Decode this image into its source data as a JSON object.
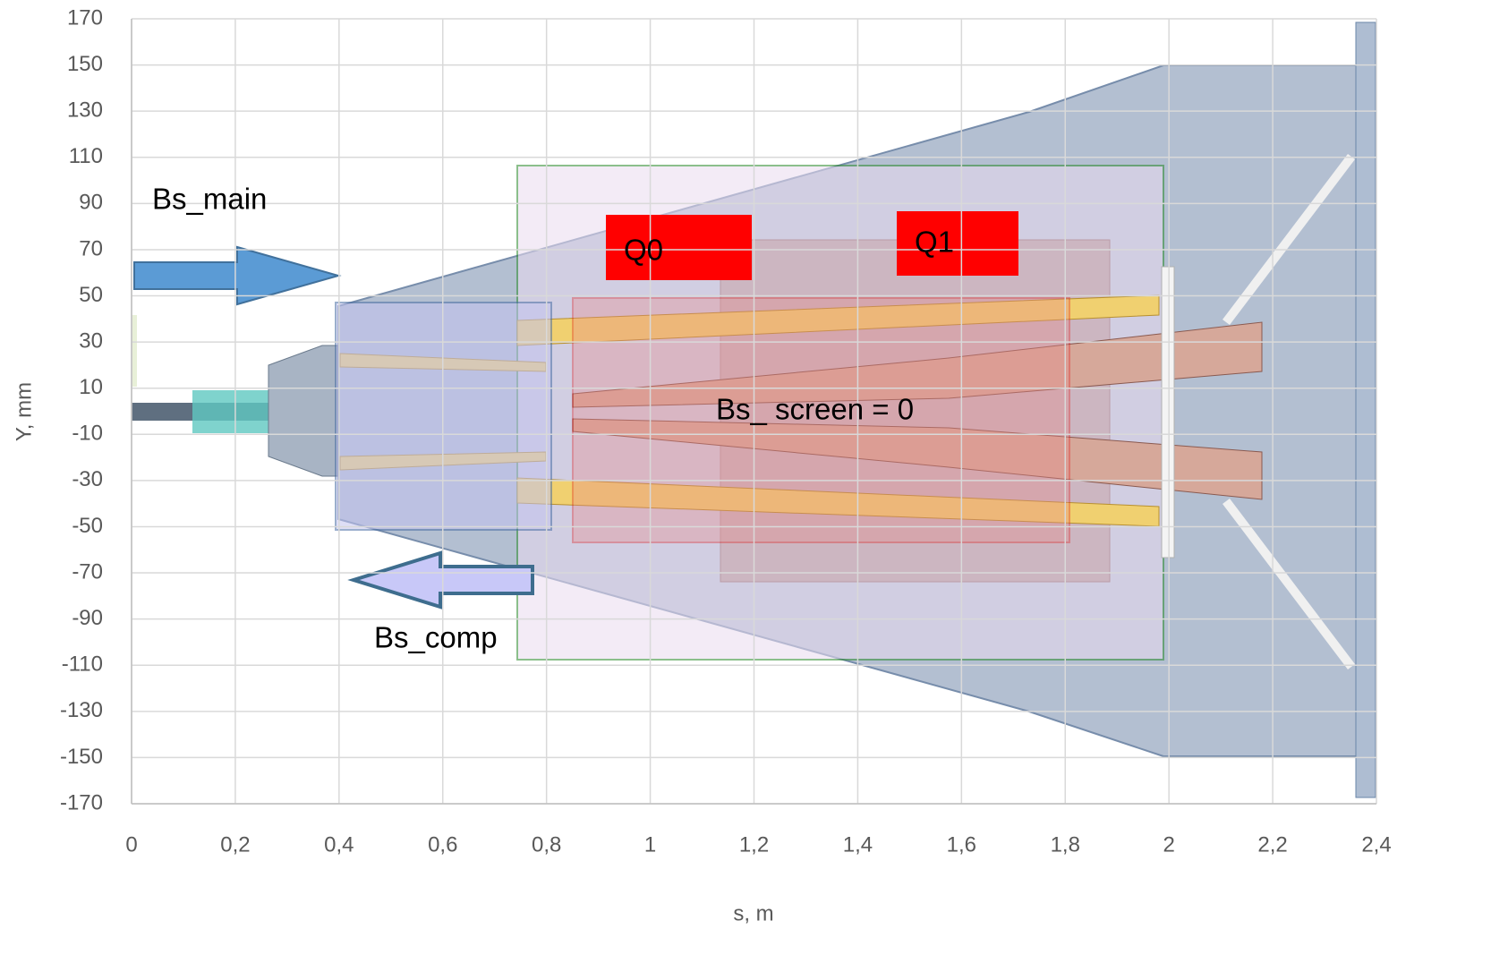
{
  "chart_data": {
    "type": "overlay",
    "x_label": "s, m",
    "y_label": "Y, mm",
    "xlim": [
      0,
      2.4
    ],
    "ylim": [
      -170,
      170
    ],
    "xticks": [
      0,
      {
        "value": 0.2,
        "label": "0,2"
      },
      {
        "value": 0.4,
        "label": "0,4"
      },
      {
        "value": 0.6,
        "label": "0,6"
      },
      {
        "value": 0.8,
        "label": "0,8"
      },
      1,
      {
        "value": 1.2,
        "label": "1,2"
      },
      {
        "value": 1.4,
        "label": "1,4"
      },
      {
        "value": 1.6,
        "label": "1,6"
      },
      {
        "value": 1.8,
        "label": "1,8"
      },
      2,
      {
        "value": 2.2,
        "label": "2,2"
      },
      {
        "value": 2.4,
        "label": "2,4"
      }
    ],
    "yticks": [
      -170,
      -150,
      -130,
      -110,
      -90,
      -70,
      -50,
      -30,
      -10,
      10,
      30,
      50,
      70,
      90,
      110,
      130,
      150,
      170
    ],
    "grid": true,
    "annotations": [
      "Bs_main",
      "Bs_comp",
      "Q0",
      "Q1",
      "Bs_ screen = 0"
    ]
  }
}
